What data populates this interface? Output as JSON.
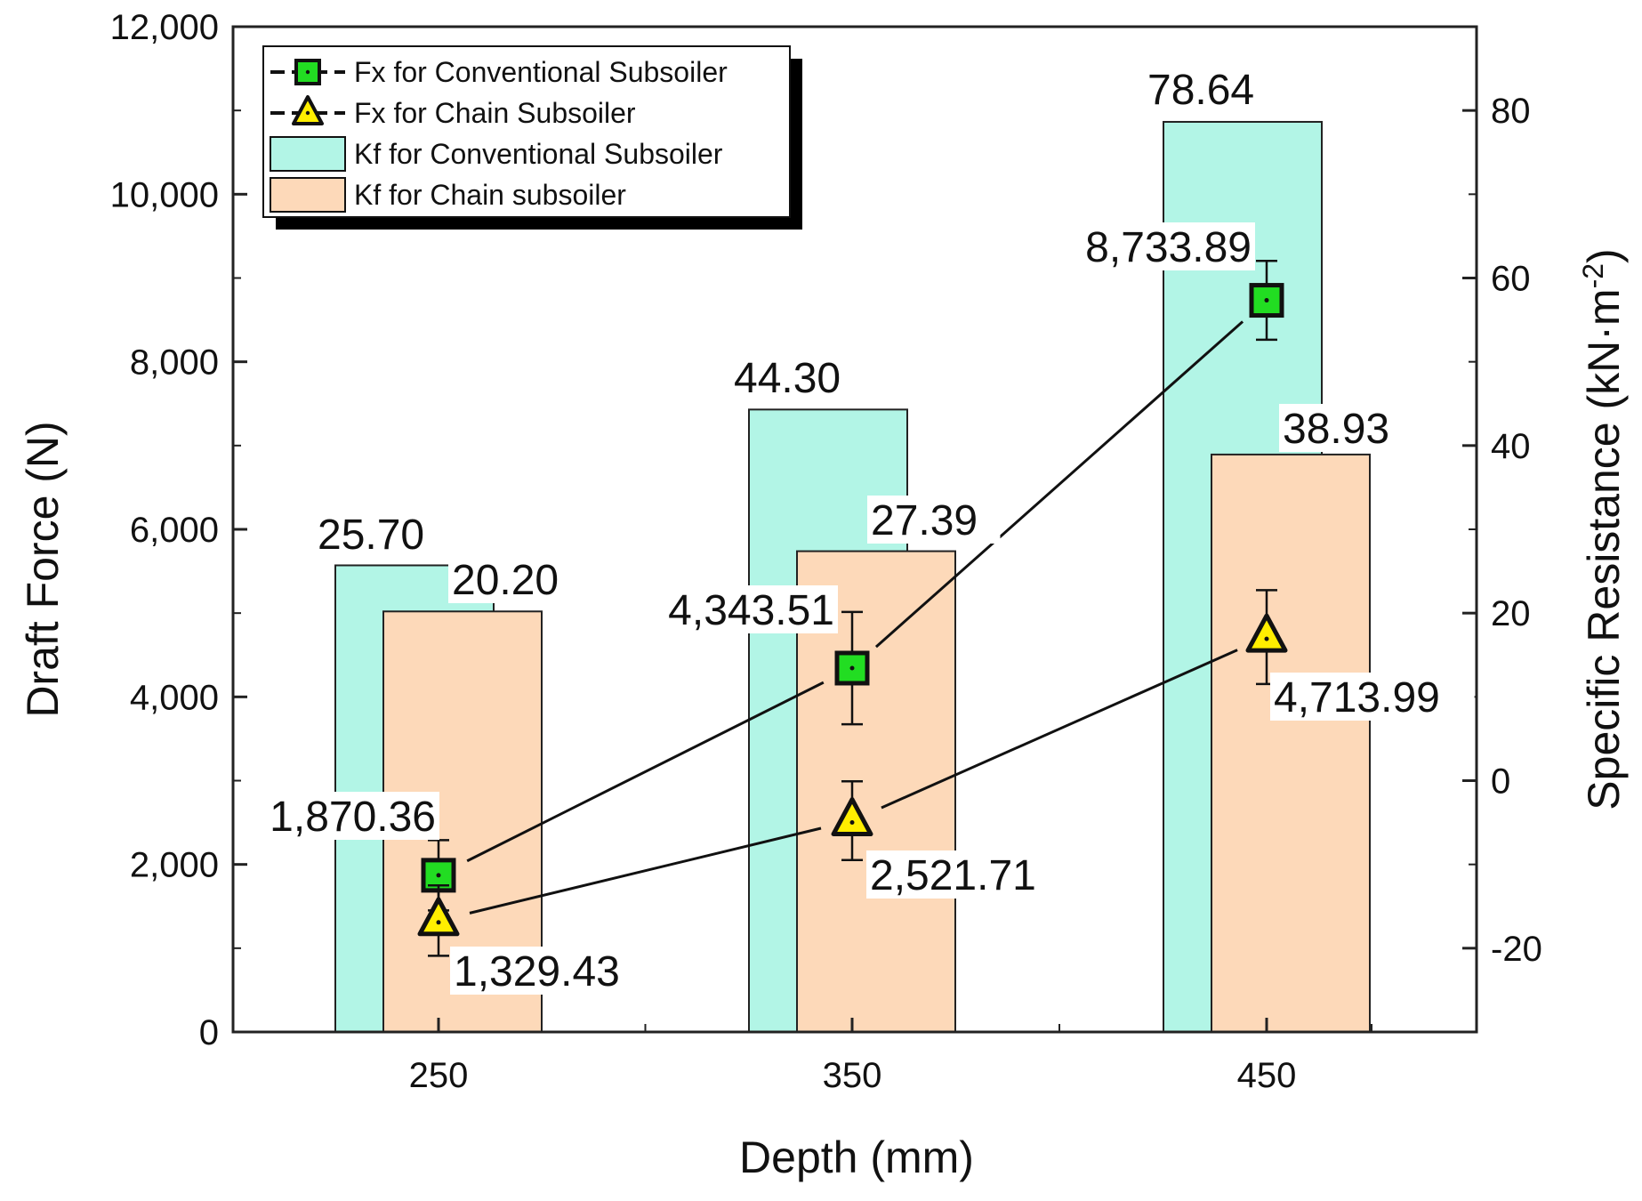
{
  "chart_data": {
    "type": "bar",
    "title": "",
    "xlabel": "Depth (mm)",
    "ylabel_left": "Draft Force (N)",
    "ylabel_right": "Specific Resistance (kN·m",
    "ylabel_right_sup": "-2",
    "ylabel_right_close": ")",
    "categories": [
      "250",
      "350",
      "450"
    ],
    "y_left": {
      "lim": [
        0,
        12000
      ],
      "ticks": [
        "0",
        "2,000",
        "4,000",
        "6,000",
        "8,000",
        "10,000",
        "12,000"
      ]
    },
    "y_right": {
      "lim": [
        -30,
        90
      ],
      "ticks": [
        "-20",
        "0",
        "20",
        "40",
        "60",
        "80"
      ]
    },
    "grid": false,
    "legend_position": "top-left",
    "bar_series": [
      {
        "name": "Kf for Conventional Subsoiler",
        "values": [
          25.7,
          44.3,
          78.64
        ],
        "labels": [
          "25.70",
          "44.30",
          "78.64"
        ],
        "color": "#b2f5e6"
      },
      {
        "name": "Kf for Chain subsoiler",
        "values": [
          20.2,
          27.39,
          38.93
        ],
        "labels": [
          "20.20",
          "27.39",
          "38.93"
        ],
        "color": "#fdd9b9"
      }
    ],
    "line_series": [
      {
        "name": "Fx for Conventional Subsoiler",
        "marker": "square",
        "values": [
          1870.36,
          4343.51,
          8733.89
        ],
        "errors": [
          420,
          670,
          470
        ],
        "labels": [
          "1,870.36",
          "4,343.51",
          "8,733.89"
        ],
        "color": "#22dd22"
      },
      {
        "name": "Fx for Chain Subsoiler",
        "marker": "triangle",
        "values": [
          1329.43,
          2521.71,
          4713.99
        ],
        "errors": [
          420,
          470,
          560
        ],
        "labels": [
          "1,329.43",
          "2,521.71",
          "4,713.99"
        ],
        "color": "#ffee00"
      }
    ]
  }
}
